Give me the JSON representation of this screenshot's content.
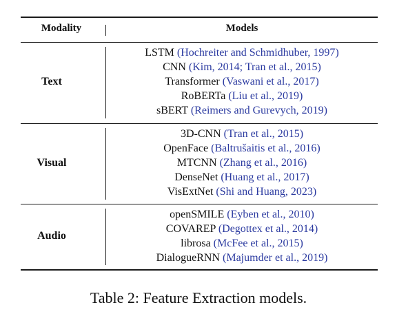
{
  "header": {
    "modality": "Modality",
    "models": "Models"
  },
  "groups": [
    {
      "label": "Text",
      "models": [
        {
          "name": "LSTM",
          "cite": "(Hochreiter and Schmidhuber, 1997)"
        },
        {
          "name": "CNN",
          "cite": "(Kim, 2014; Tran et al., 2015)"
        },
        {
          "name": "Transformer",
          "cite": "(Vaswani et al., 2017)"
        },
        {
          "name": "RoBERTa",
          "cite": "(Liu et al., 2019)"
        },
        {
          "name": "sBERT",
          "cite": "(Reimers and Gurevych, 2019)"
        }
      ]
    },
    {
      "label": "Visual",
      "models": [
        {
          "name": "3D-CNN",
          "cite": "(Tran et al., 2015)"
        },
        {
          "name": "OpenFace",
          "cite": "(Baltrušaitis et al., 2016)"
        },
        {
          "name": "MTCNN",
          "cite": "(Zhang et al., 2016)"
        },
        {
          "name": "DenseNet",
          "cite": "(Huang et al., 2017)"
        },
        {
          "name": "VisExtNet",
          "cite": "(Shi and Huang, 2023)"
        }
      ]
    },
    {
      "label": "Audio",
      "models": [
        {
          "name": "openSMILE",
          "cite": "(Eyben et al., 2010)"
        },
        {
          "name": "COVAREP",
          "cite": "(Degottex et al., 2014)"
        },
        {
          "name": "librosa",
          "cite": "(McFee et al., 2015)"
        },
        {
          "name": "DialogueRNN",
          "cite": "(Majumder et al., 2019)"
        }
      ]
    }
  ],
  "caption": "Table 2: Feature Extraction models.",
  "colors": {
    "citation": "#2b3aa0",
    "rule": "#1a1a1a"
  }
}
